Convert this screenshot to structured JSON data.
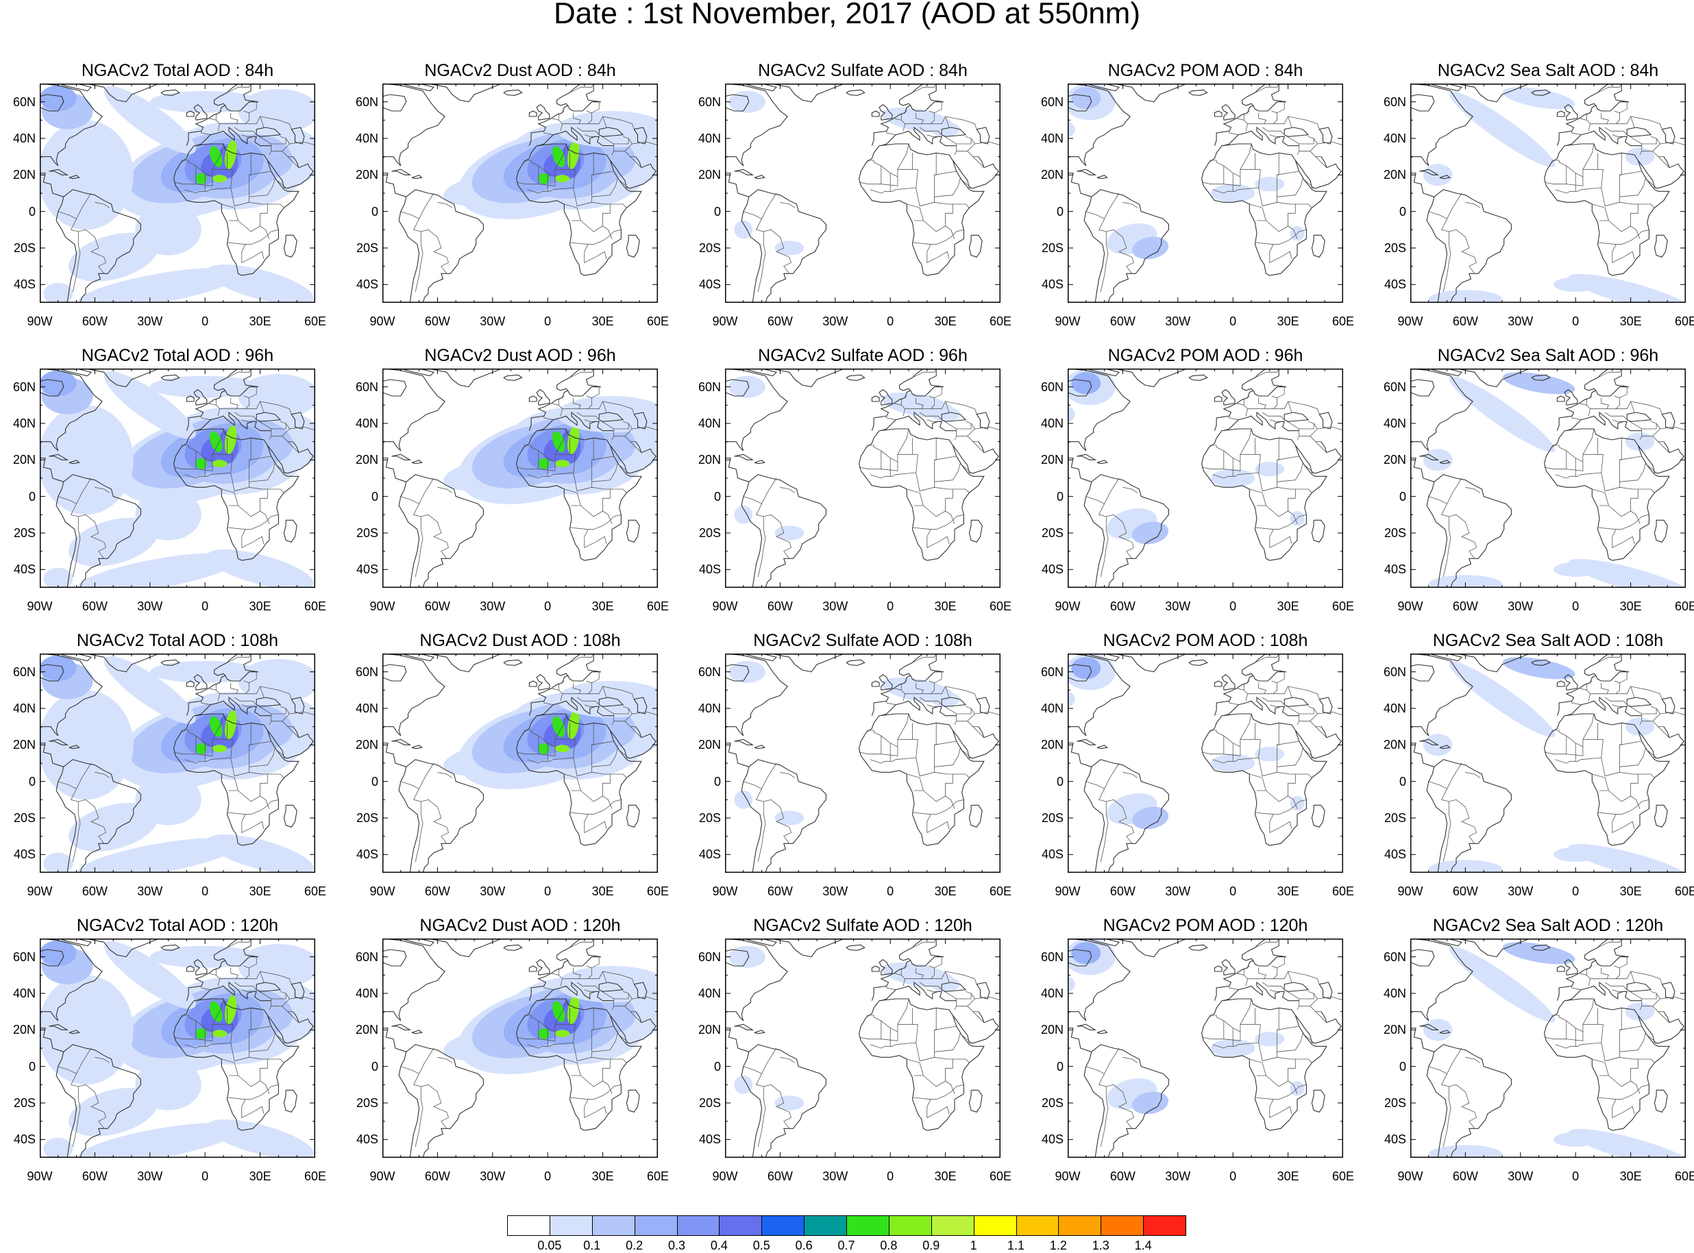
{
  "title": "Date : 1st November, 2017 (AOD at 550nm)",
  "lat_ticks": [
    "60N",
    "40N",
    "20N",
    "0",
    "20S",
    "40S"
  ],
  "lat_values": [
    60,
    40,
    20,
    0,
    -20,
    -40
  ],
  "lon_ticks": [
    "90W",
    "60W",
    "30W",
    "0",
    "30E",
    "60E"
  ],
  "lon_values": [
    -90,
    -60,
    -30,
    0,
    30,
    60
  ],
  "extent": {
    "lon": [
      -90,
      60
    ],
    "lat": [
      -50,
      70
    ]
  },
  "panels": [
    {
      "title": "NGACv2 Total AOD : 84h",
      "kind": "total",
      "hour": 84
    },
    {
      "title": "NGACv2 Dust AOD : 84h",
      "kind": "dust",
      "hour": 84
    },
    {
      "title": "NGACv2 Sulfate AOD : 84h",
      "kind": "sulfate",
      "hour": 84
    },
    {
      "title": "NGACv2 POM AOD : 84h",
      "kind": "pom",
      "hour": 84
    },
    {
      "title": "NGACv2 Sea Salt AOD : 84h",
      "kind": "seasalt",
      "hour": 84
    },
    {
      "title": "NGACv2 Total AOD : 96h",
      "kind": "total",
      "hour": 96
    },
    {
      "title": "NGACv2 Dust AOD : 96h",
      "kind": "dust",
      "hour": 96
    },
    {
      "title": "NGACv2 Sulfate AOD : 96h",
      "kind": "sulfate",
      "hour": 96
    },
    {
      "title": "NGACv2 POM AOD : 96h",
      "kind": "pom",
      "hour": 96
    },
    {
      "title": "NGACv2 Sea Salt AOD : 96h",
      "kind": "seasalt",
      "hour": 96
    },
    {
      "title": "NGACv2 Total AOD : 108h",
      "kind": "total",
      "hour": 108
    },
    {
      "title": "NGACv2 Dust AOD : 108h",
      "kind": "dust",
      "hour": 108
    },
    {
      "title": "NGACv2 Sulfate AOD : 108h",
      "kind": "sulfate",
      "hour": 108
    },
    {
      "title": "NGACv2 POM AOD : 108h",
      "kind": "pom",
      "hour": 108
    },
    {
      "title": "NGACv2 Sea Salt AOD : 108h",
      "kind": "seasalt",
      "hour": 108
    },
    {
      "title": "NGACv2 Total AOD : 120h",
      "kind": "total",
      "hour": 120
    },
    {
      "title": "NGACv2 Dust AOD : 120h",
      "kind": "dust",
      "hour": 120
    },
    {
      "title": "NGACv2 Sulfate AOD : 120h",
      "kind": "sulfate",
      "hour": 120
    },
    {
      "title": "NGACv2 POM AOD : 120h",
      "kind": "pom",
      "hour": 120
    },
    {
      "title": "NGACv2 Sea Salt  AOD : 120h",
      "kind": "seasalt",
      "hour": 120
    }
  ],
  "colorbar": {
    "labels": [
      "0.05",
      "0.1",
      "0.2",
      "0.3",
      "0.4",
      "0.5",
      "0.6",
      "0.7",
      "0.8",
      "0.9",
      "1",
      "1.1",
      "1.2",
      "1.3",
      "1.4"
    ],
    "colors": [
      "#ffffff",
      "#d6e2fc",
      "#b4c7fa",
      "#98b1f8",
      "#7f96f4",
      "#6470ee",
      "#1b64f1",
      "#009a9a",
      "#33e11b",
      "#86ef1b",
      "#bbf23c",
      "#fefe00",
      "#fec600",
      "#fea200",
      "#ff7700",
      "#ff2318"
    ]
  }
}
